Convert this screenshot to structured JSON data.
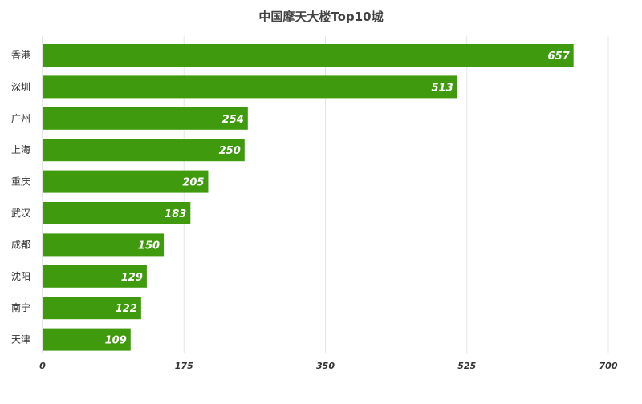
{
  "chart_data": {
    "type": "bar",
    "orientation": "horizontal",
    "title": "中国摩天大楼Top10城",
    "categories": [
      "香港",
      "深圳",
      "广州",
      "上海",
      "重庆",
      "武汉",
      "成都",
      "沈阳",
      "南宁",
      "天津"
    ],
    "values": [
      657,
      513,
      254,
      250,
      205,
      183,
      150,
      129,
      122,
      109
    ],
    "xlim": [
      0,
      700
    ],
    "xticks": [
      "0",
      "175",
      "350",
      "525",
      "700"
    ],
    "xlabel": "",
    "ylabel": "",
    "grid": true,
    "bar_color": "#3f9a0e"
  }
}
